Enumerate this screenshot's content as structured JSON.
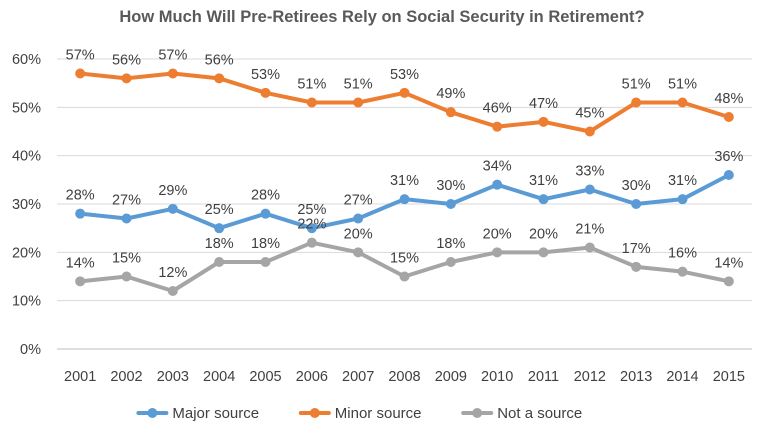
{
  "chart_data": {
    "type": "line",
    "title": "How Much Will Pre-Retirees Rely on Social Security in Retirement?",
    "xlabel": "",
    "ylabel": "",
    "categories": [
      "2001",
      "2002",
      "2003",
      "2004",
      "2005",
      "2006",
      "2007",
      "2008",
      "2009",
      "2010",
      "2011",
      "2012",
      "2013",
      "2014",
      "2015"
    ],
    "y_ticks": [
      "0%",
      "10%",
      "20%",
      "30%",
      "40%",
      "50%",
      "60%"
    ],
    "ylim": [
      0,
      60
    ],
    "grid": true,
    "legend_position": "bottom",
    "series": [
      {
        "name": "Major source",
        "color": "#5b9bd5",
        "values": [
          28,
          27,
          29,
          25,
          28,
          25,
          27,
          31,
          30,
          34,
          31,
          33,
          30,
          31,
          36
        ]
      },
      {
        "name": "Minor source",
        "color": "#ed7d31",
        "values": [
          57,
          56,
          57,
          56,
          53,
          51,
          51,
          53,
          49,
          46,
          47,
          45,
          51,
          51,
          48
        ]
      },
      {
        "name": "Not a source",
        "color": "#a5a5a5",
        "values": [
          14,
          15,
          12,
          18,
          18,
          22,
          20,
          15,
          18,
          20,
          20,
          21,
          17,
          16,
          14
        ]
      }
    ]
  }
}
